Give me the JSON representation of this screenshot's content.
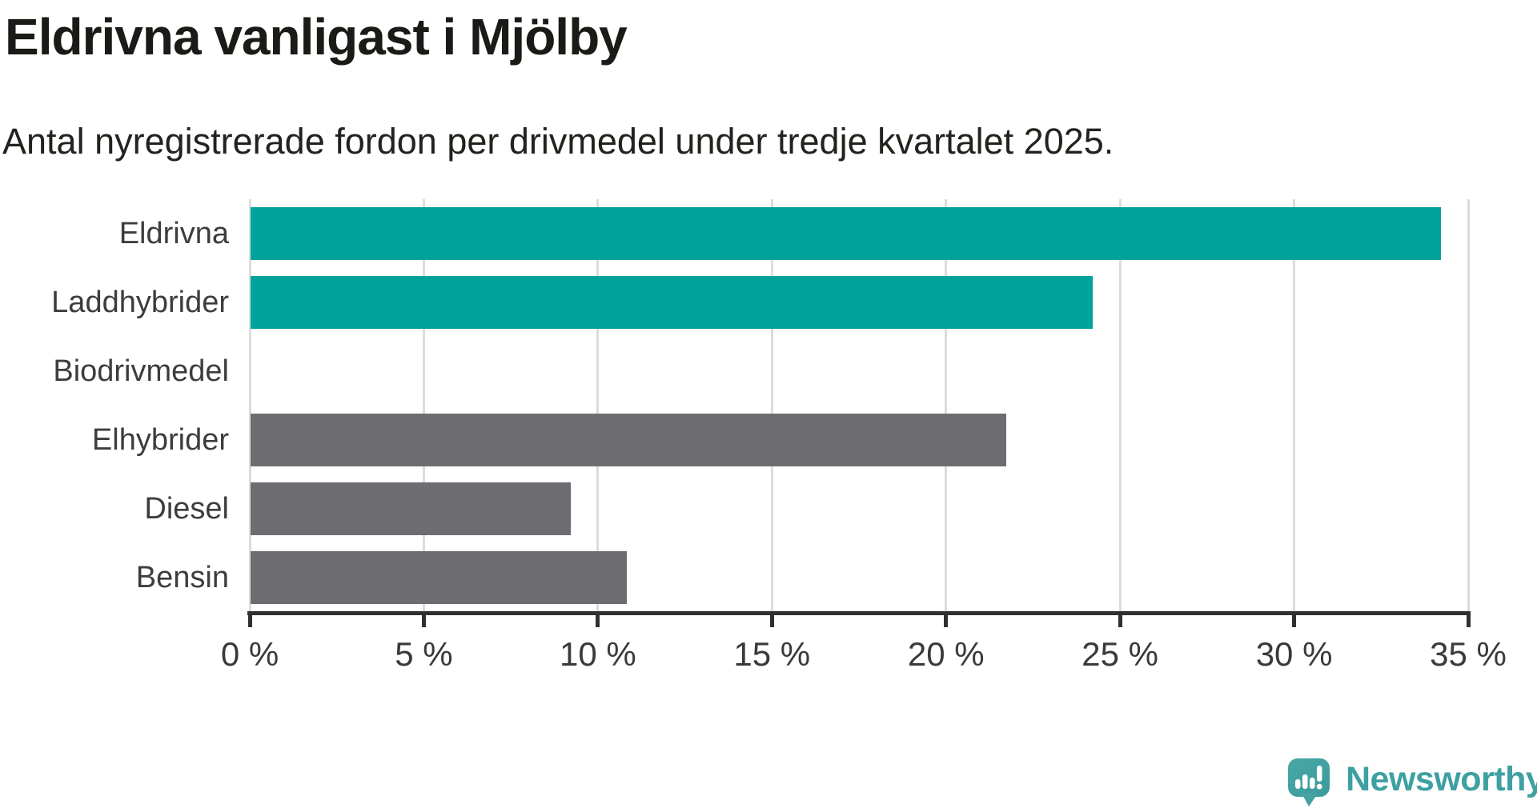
{
  "chart_data": {
    "type": "bar",
    "orientation": "horizontal",
    "title": "Eldrivna vanligast i Mjölby",
    "subtitle": "Antal nyregistrerade fordon per drivmedel under tredje kvartalet 2025.",
    "categories": [
      "Eldrivna",
      "Laddhybrider",
      "Biodrivmedel",
      "Elhybrider",
      "Diesel",
      "Bensin"
    ],
    "values": [
      34.2,
      24.2,
      0,
      21.7,
      9.2,
      10.8
    ],
    "unit": "%",
    "bar_colors": [
      "#00a39c",
      "#00a39c",
      "#6c6c71",
      "#6c6c71",
      "#6c6c71",
      "#6c6c71"
    ],
    "xlim": [
      0,
      35
    ],
    "x_ticks": [
      0,
      5,
      10,
      15,
      20,
      25,
      30,
      35
    ],
    "x_tick_labels": [
      "0 %",
      "5 %",
      "10 %",
      "15 %",
      "20 %",
      "25 %",
      "30 %",
      "35 %"
    ],
    "grid": "vertical-gridlines",
    "legend": "none"
  },
  "logo": {
    "text": "Newsworthy",
    "color": "#3ea0a1",
    "icon": "newsworthy-speech-bubble-bar-chart-icon"
  },
  "colors": {
    "accent_teal": "#00a39c",
    "neutral_gray": "#6c6c71",
    "axis": "#303030",
    "gridline": "#dcdcdc",
    "title_text": "#1a1a16",
    "label_text": "#3d3d3d",
    "background": "#ffffff"
  }
}
